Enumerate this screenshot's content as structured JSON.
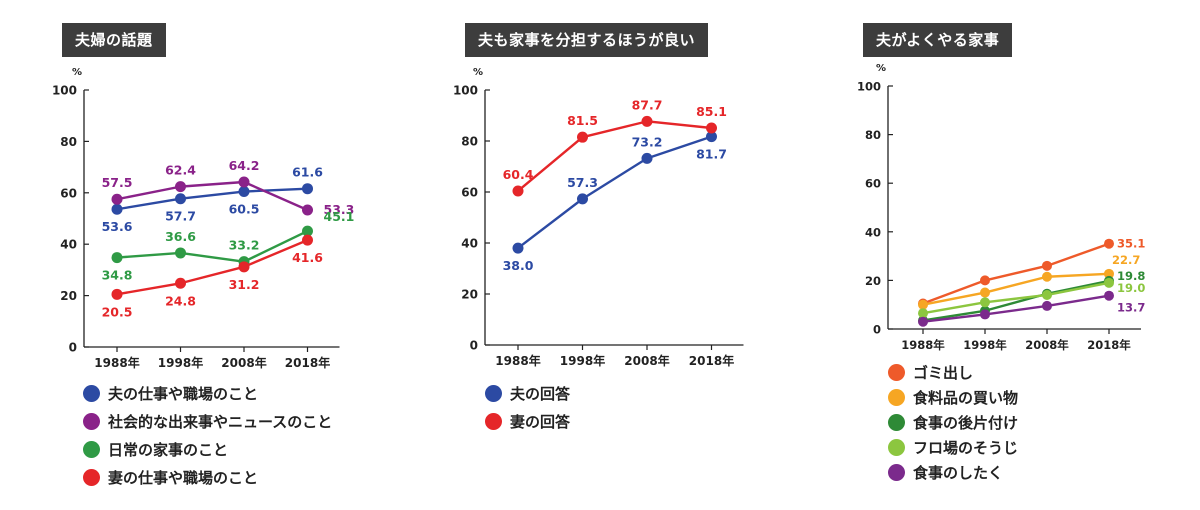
{
  "chart_data": [
    {
      "type": "line",
      "title": "夫婦の話題",
      "unit": "%",
      "categories": [
        "1988年",
        "1998年",
        "2008年",
        "2018年"
      ],
      "ylim": [
        0,
        100
      ],
      "yticks": [
        0,
        20,
        40,
        60,
        80,
        100
      ],
      "series": [
        {
          "name": "夫の仕事や職場のこと",
          "color": "#2c4aa3",
          "values": [
            53.6,
            57.7,
            60.5,
            61.6
          ]
        },
        {
          "name": "社会的な出来事やニュースのこと",
          "color": "#8a2289",
          "values": [
            57.5,
            62.4,
            64.2,
            53.3
          ]
        },
        {
          "name": "日常の家事のこと",
          "color": "#2f9a45",
          "values": [
            34.8,
            36.6,
            33.2,
            45.1
          ]
        },
        {
          "name": "妻の仕事や職場のこと",
          "color": "#e52629",
          "values": [
            20.5,
            24.8,
            31.2,
            41.6
          ]
        }
      ]
    },
    {
      "type": "line",
      "title": "夫も家事を分担するほうが良い",
      "unit": "%",
      "categories": [
        "1988年",
        "1998年",
        "2008年",
        "2018年"
      ],
      "ylim": [
        0,
        100
      ],
      "yticks": [
        0,
        20,
        40,
        60,
        80,
        100
      ],
      "series": [
        {
          "name": "夫の回答",
          "color": "#2c4aa3",
          "values": [
            38.0,
            57.3,
            73.2,
            81.7
          ]
        },
        {
          "name": "妻の回答",
          "color": "#e52629",
          "values": [
            60.4,
            81.5,
            87.7,
            85.1
          ]
        }
      ]
    },
    {
      "type": "line",
      "title": "夫がよくやる家事",
      "unit": "%",
      "categories": [
        "1988年",
        "1998年",
        "2008年",
        "2018年"
      ],
      "ylim": [
        0,
        100
      ],
      "yticks": [
        0,
        20,
        40,
        60,
        80,
        100
      ],
      "series": [
        {
          "name": "ゴミ出し",
          "color": "#ee5a2a",
          "values": [
            10.5,
            20.0,
            26.0,
            35.1
          ]
        },
        {
          "name": "食料品の買い物",
          "color": "#f6a623",
          "values": [
            10.0,
            15.0,
            21.5,
            22.7
          ]
        },
        {
          "name": "食事の後片付け",
          "color": "#2e8a36",
          "values": [
            3.5,
            7.5,
            14.5,
            19.8
          ]
        },
        {
          "name": "フロ場のそうじ",
          "color": "#8cc63f",
          "values": [
            6.5,
            11.0,
            14.0,
            19.0
          ]
        },
        {
          "name": "食事のしたく",
          "color": "#7b2a8c",
          "values": [
            3.0,
            6.0,
            9.5,
            13.7
          ]
        }
      ]
    }
  ]
}
